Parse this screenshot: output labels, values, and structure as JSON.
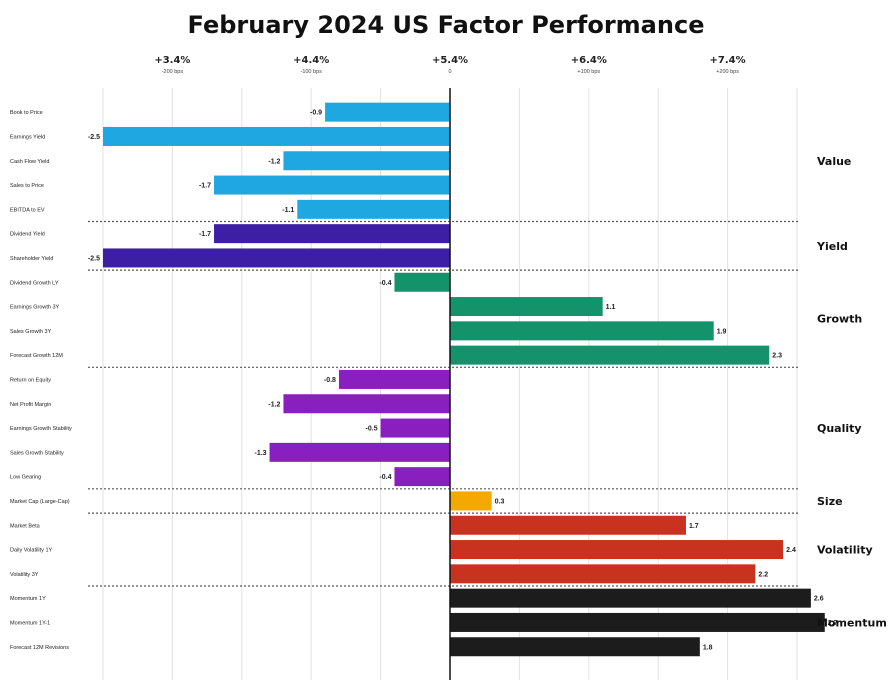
{
  "chart_data": {
    "type": "bar",
    "orientation": "horizontal",
    "title": "February 2024 US Factor Performance",
    "xlim": [
      -2.5,
      2.6
    ],
    "baseline_label": "+5.4%",
    "top_ticks": [
      {
        "value": -2.0,
        "label": "+3.4%",
        "sub": "-200 bps"
      },
      {
        "value": -1.0,
        "label": "+4.4%",
        "sub": "-100 bps"
      },
      {
        "value": 0.0,
        "label": "+5.4%",
        "sub": "0"
      },
      {
        "value": 1.0,
        "label": "+6.4%",
        "sub": "+100 bps"
      },
      {
        "value": 2.0,
        "label": "+7.4%",
        "sub": "+200 bps"
      }
    ],
    "groups": [
      {
        "name": "Value",
        "color": "#1ea7e0",
        "bars": [
          {
            "label": "Book to Price",
            "value": -0.9,
            "display": "-0.9"
          },
          {
            "label": "Earnings Yield",
            "value": -2.5,
            "display": "-2.5"
          },
          {
            "label": "Cash Flow Yield",
            "value": -1.2,
            "display": "-1.2"
          },
          {
            "label": "Sales to Price",
            "value": -1.7,
            "display": "-1.7"
          },
          {
            "label": "EBITDA to EV",
            "value": -1.1,
            "display": "-1.1"
          }
        ]
      },
      {
        "name": "Yield",
        "color": "#3d1fa6",
        "bars": [
          {
            "label": "Dividend Yield",
            "value": -1.7,
            "display": "-1.7"
          },
          {
            "label": "Shareholder Yield",
            "value": -2.5,
            "display": "-2.5"
          }
        ]
      },
      {
        "name": "Growth",
        "color": "#14926a",
        "bars": [
          {
            "label": "Dividend Growth LY",
            "value": -0.4,
            "display": "-0.4"
          },
          {
            "label": "Earnings Growth 3Y",
            "value": 1.1,
            "display": "1.1"
          },
          {
            "label": "Sales Growth 3Y",
            "value": 1.9,
            "display": "1.9"
          },
          {
            "label": "Forecast Growth 12M",
            "value": 2.3,
            "display": "2.3"
          }
        ]
      },
      {
        "name": "Quality",
        "color": "#8a1fbf",
        "bars": [
          {
            "label": "Return on Equity",
            "value": -0.8,
            "display": "-0.8"
          },
          {
            "label": "Net Profit Margin",
            "value": -1.2,
            "display": "-1.2"
          },
          {
            "label": "Earnings Growth Stability",
            "value": -0.5,
            "display": "-0.5"
          },
          {
            "label": "Sales Growth Stability",
            "value": -1.3,
            "display": "-1.3"
          },
          {
            "label": "Low Gearing",
            "value": -0.4,
            "display": "-0.4"
          }
        ]
      },
      {
        "name": "Size",
        "color": "#f5a800",
        "bars": [
          {
            "label": "Market Cap (Large-Cap)",
            "value": 0.3,
            "display": "0.3"
          }
        ]
      },
      {
        "name": "Volatility",
        "color": "#c8321e",
        "bars": [
          {
            "label": "Market Beta",
            "value": 1.7,
            "display": "1.7"
          },
          {
            "label": "Daily Volatility 1Y",
            "value": 2.4,
            "display": "2.4"
          },
          {
            "label": "Volatility 3Y",
            "value": 2.2,
            "display": "2.2"
          }
        ]
      },
      {
        "name": "Momentum",
        "color": "#1c1c1c",
        "bars": [
          {
            "label": "Momentum 1Y",
            "value": 2.6,
            "display": "2.6"
          },
          {
            "label": "Momentum 1Y-1",
            "value": 2.7,
            "display": "2.7"
          },
          {
            "label": "Forecast 12M Revisions",
            "value": 1.8,
            "display": "1.8"
          }
        ]
      }
    ]
  }
}
